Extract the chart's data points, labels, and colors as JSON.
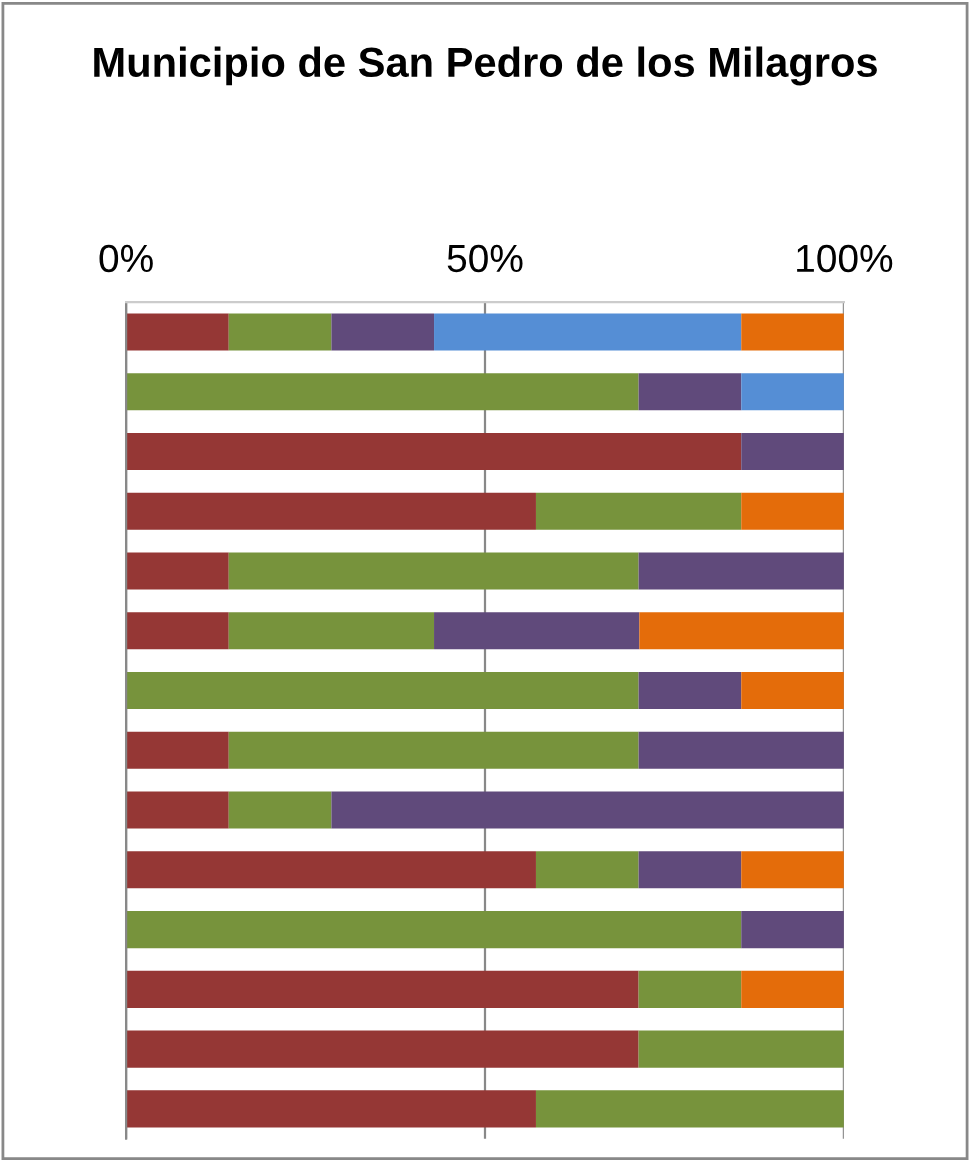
{
  "chart_data": {
    "type": "bar",
    "orientation": "horizontal",
    "stacked": true,
    "title": "Municipio de San Pedro de los Milagros",
    "categories": [
      null,
      null,
      null,
      null,
      null,
      null,
      null,
      null,
      null,
      null,
      null,
      null,
      null,
      null
    ],
    "series": [
      {
        "color": "#953735",
        "values": [
          14.3,
          null,
          85.7,
          57.1,
          14.3,
          14.3,
          null,
          14.3,
          14.3,
          57.1,
          null,
          71.4,
          71.4,
          57.1
        ]
      },
      {
        "color": "#77933c",
        "values": [
          14.3,
          71.4,
          null,
          28.6,
          57.1,
          28.6,
          71.4,
          57.1,
          14.3,
          14.3,
          85.7,
          14.3,
          28.6,
          42.9
        ]
      },
      {
        "color": "#604a7b",
        "values": [
          14.3,
          14.3,
          14.3,
          null,
          28.6,
          28.6,
          14.3,
          28.6,
          71.4,
          14.3,
          14.3,
          null,
          null,
          null
        ]
      },
      {
        "color": "#558ed5",
        "values": [
          42.8,
          14.3,
          null,
          null,
          null,
          null,
          null,
          null,
          null,
          null,
          null,
          null,
          null,
          null
        ]
      },
      {
        "color": "#e46c0a",
        "values": [
          14.3,
          null,
          null,
          14.3,
          null,
          28.5,
          14.3,
          null,
          null,
          14.3,
          null,
          14.3,
          null,
          null
        ]
      }
    ],
    "xlim": [
      0,
      100
    ],
    "xticks": [
      {
        "value": 0,
        "label": "0%"
      },
      {
        "value": 50,
        "label": "50%"
      },
      {
        "value": 100,
        "label": "100%"
      }
    ],
    "grid": "x",
    "legend": false
  }
}
